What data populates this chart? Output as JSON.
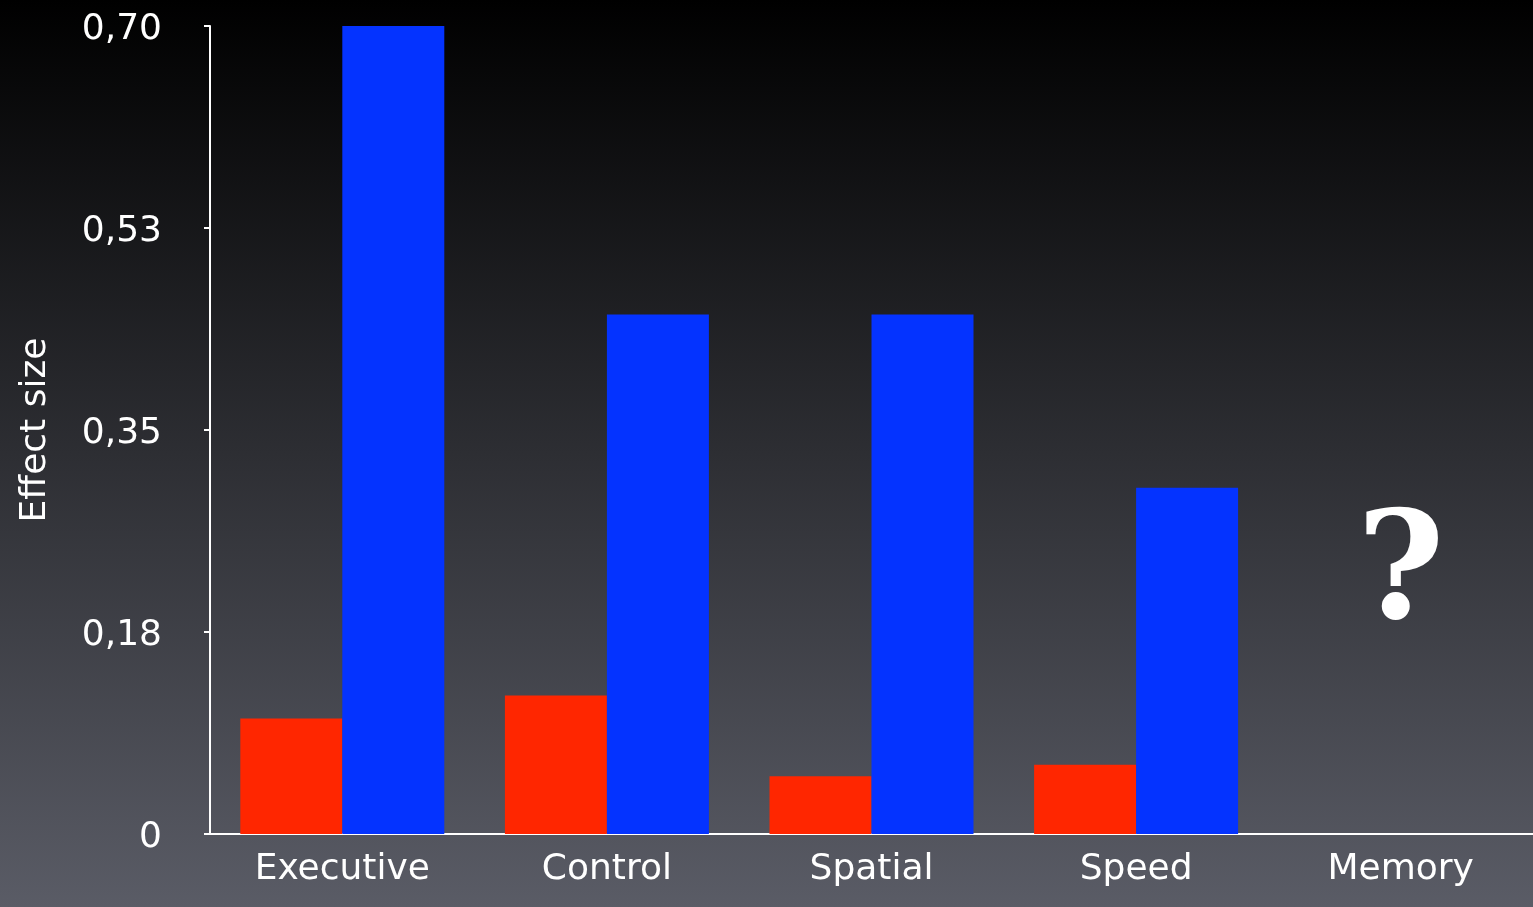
{
  "chart_data": {
    "type": "bar",
    "ylabel": "Effect size",
    "categories": [
      "Executive",
      "Control",
      "Spatial",
      "Speed",
      "Memory"
    ],
    "series": [
      {
        "color": "#ff2600",
        "values": [
          0.1,
          0.12,
          0.05,
          0.06,
          null
        ]
      },
      {
        "color": "#0433ff",
        "values": [
          0.7,
          0.45,
          0.45,
          0.3,
          null
        ]
      }
    ],
    "ylim": [
      0,
      0.7
    ],
    "yticks": [
      0,
      {
        "value": 0.175,
        "label": "0,18"
      },
      {
        "value": 0.35,
        "label": "0,35"
      },
      {
        "value": 0.525,
        "label": "0,53"
      },
      {
        "value": 0.7,
        "label": "0,70"
      }
    ],
    "grid": false,
    "annotations": [
      "?"
    ]
  }
}
